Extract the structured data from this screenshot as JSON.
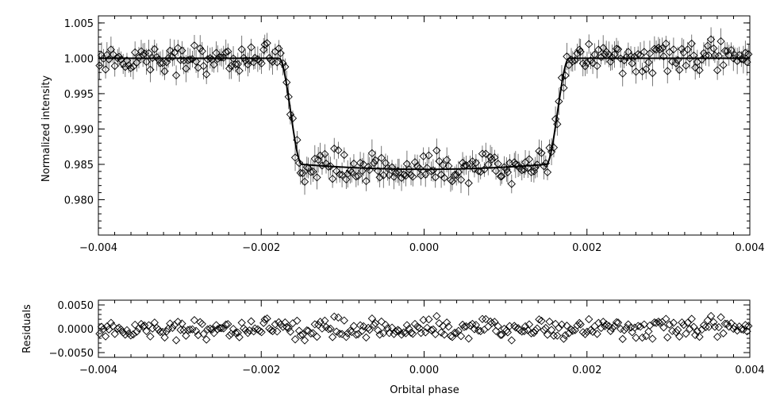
{
  "chart_data": [
    {
      "type": "scatter",
      "panel": "light-curve",
      "xlabel": "",
      "ylabel": "Normalized intensity",
      "xlim": [
        -0.004,
        0.004
      ],
      "ylim": [
        0.975,
        1.006
      ],
      "x_ticks": [
        -0.004,
        -0.002,
        0.0,
        0.002,
        0.004
      ],
      "x_tick_labels": [
        "−0.004",
        "−0.002",
        "0.000",
        "0.002",
        "0.004"
      ],
      "y_ticks": [
        0.98,
        0.985,
        0.99,
        0.995,
        1.0,
        1.005
      ],
      "y_tick_labels": [
        "0.980",
        "0.985",
        "0.990",
        "0.995",
        "1.000",
        "1.005"
      ],
      "marker": "diamond",
      "error_bars": true,
      "grid": false,
      "model": {
        "depth": 0.015,
        "first_contact": -0.00178,
        "full_transit_start": -0.0015,
        "full_transit_end": 0.0015,
        "last_contact": 0.00178,
        "limb_darkening_center_extra": 0.0007
      },
      "series_summary": {
        "out_of_transit_level": 1.0,
        "in_transit_minimum": 0.9843,
        "typical_scatter": 0.001,
        "typical_error": 0.0015
      }
    },
    {
      "type": "scatter",
      "panel": "residuals",
      "xlabel": "Orbital phase",
      "ylabel": "Residuals",
      "xlim": [
        -0.004,
        0.004
      ],
      "ylim": [
        -0.006,
        0.006
      ],
      "x_ticks": [
        -0.004,
        -0.002,
        0.0,
        0.002,
        0.004
      ],
      "x_tick_labels": [
        "−0.004",
        "−0.002",
        "0.000",
        "0.002",
        "0.004"
      ],
      "y_ticks": [
        -0.005,
        0.0,
        0.005
      ],
      "y_tick_labels": [
        "−0.0050",
        "0.0000",
        "0.0050"
      ],
      "marker": "diamond",
      "error_bars": false,
      "grid": false
    }
  ]
}
